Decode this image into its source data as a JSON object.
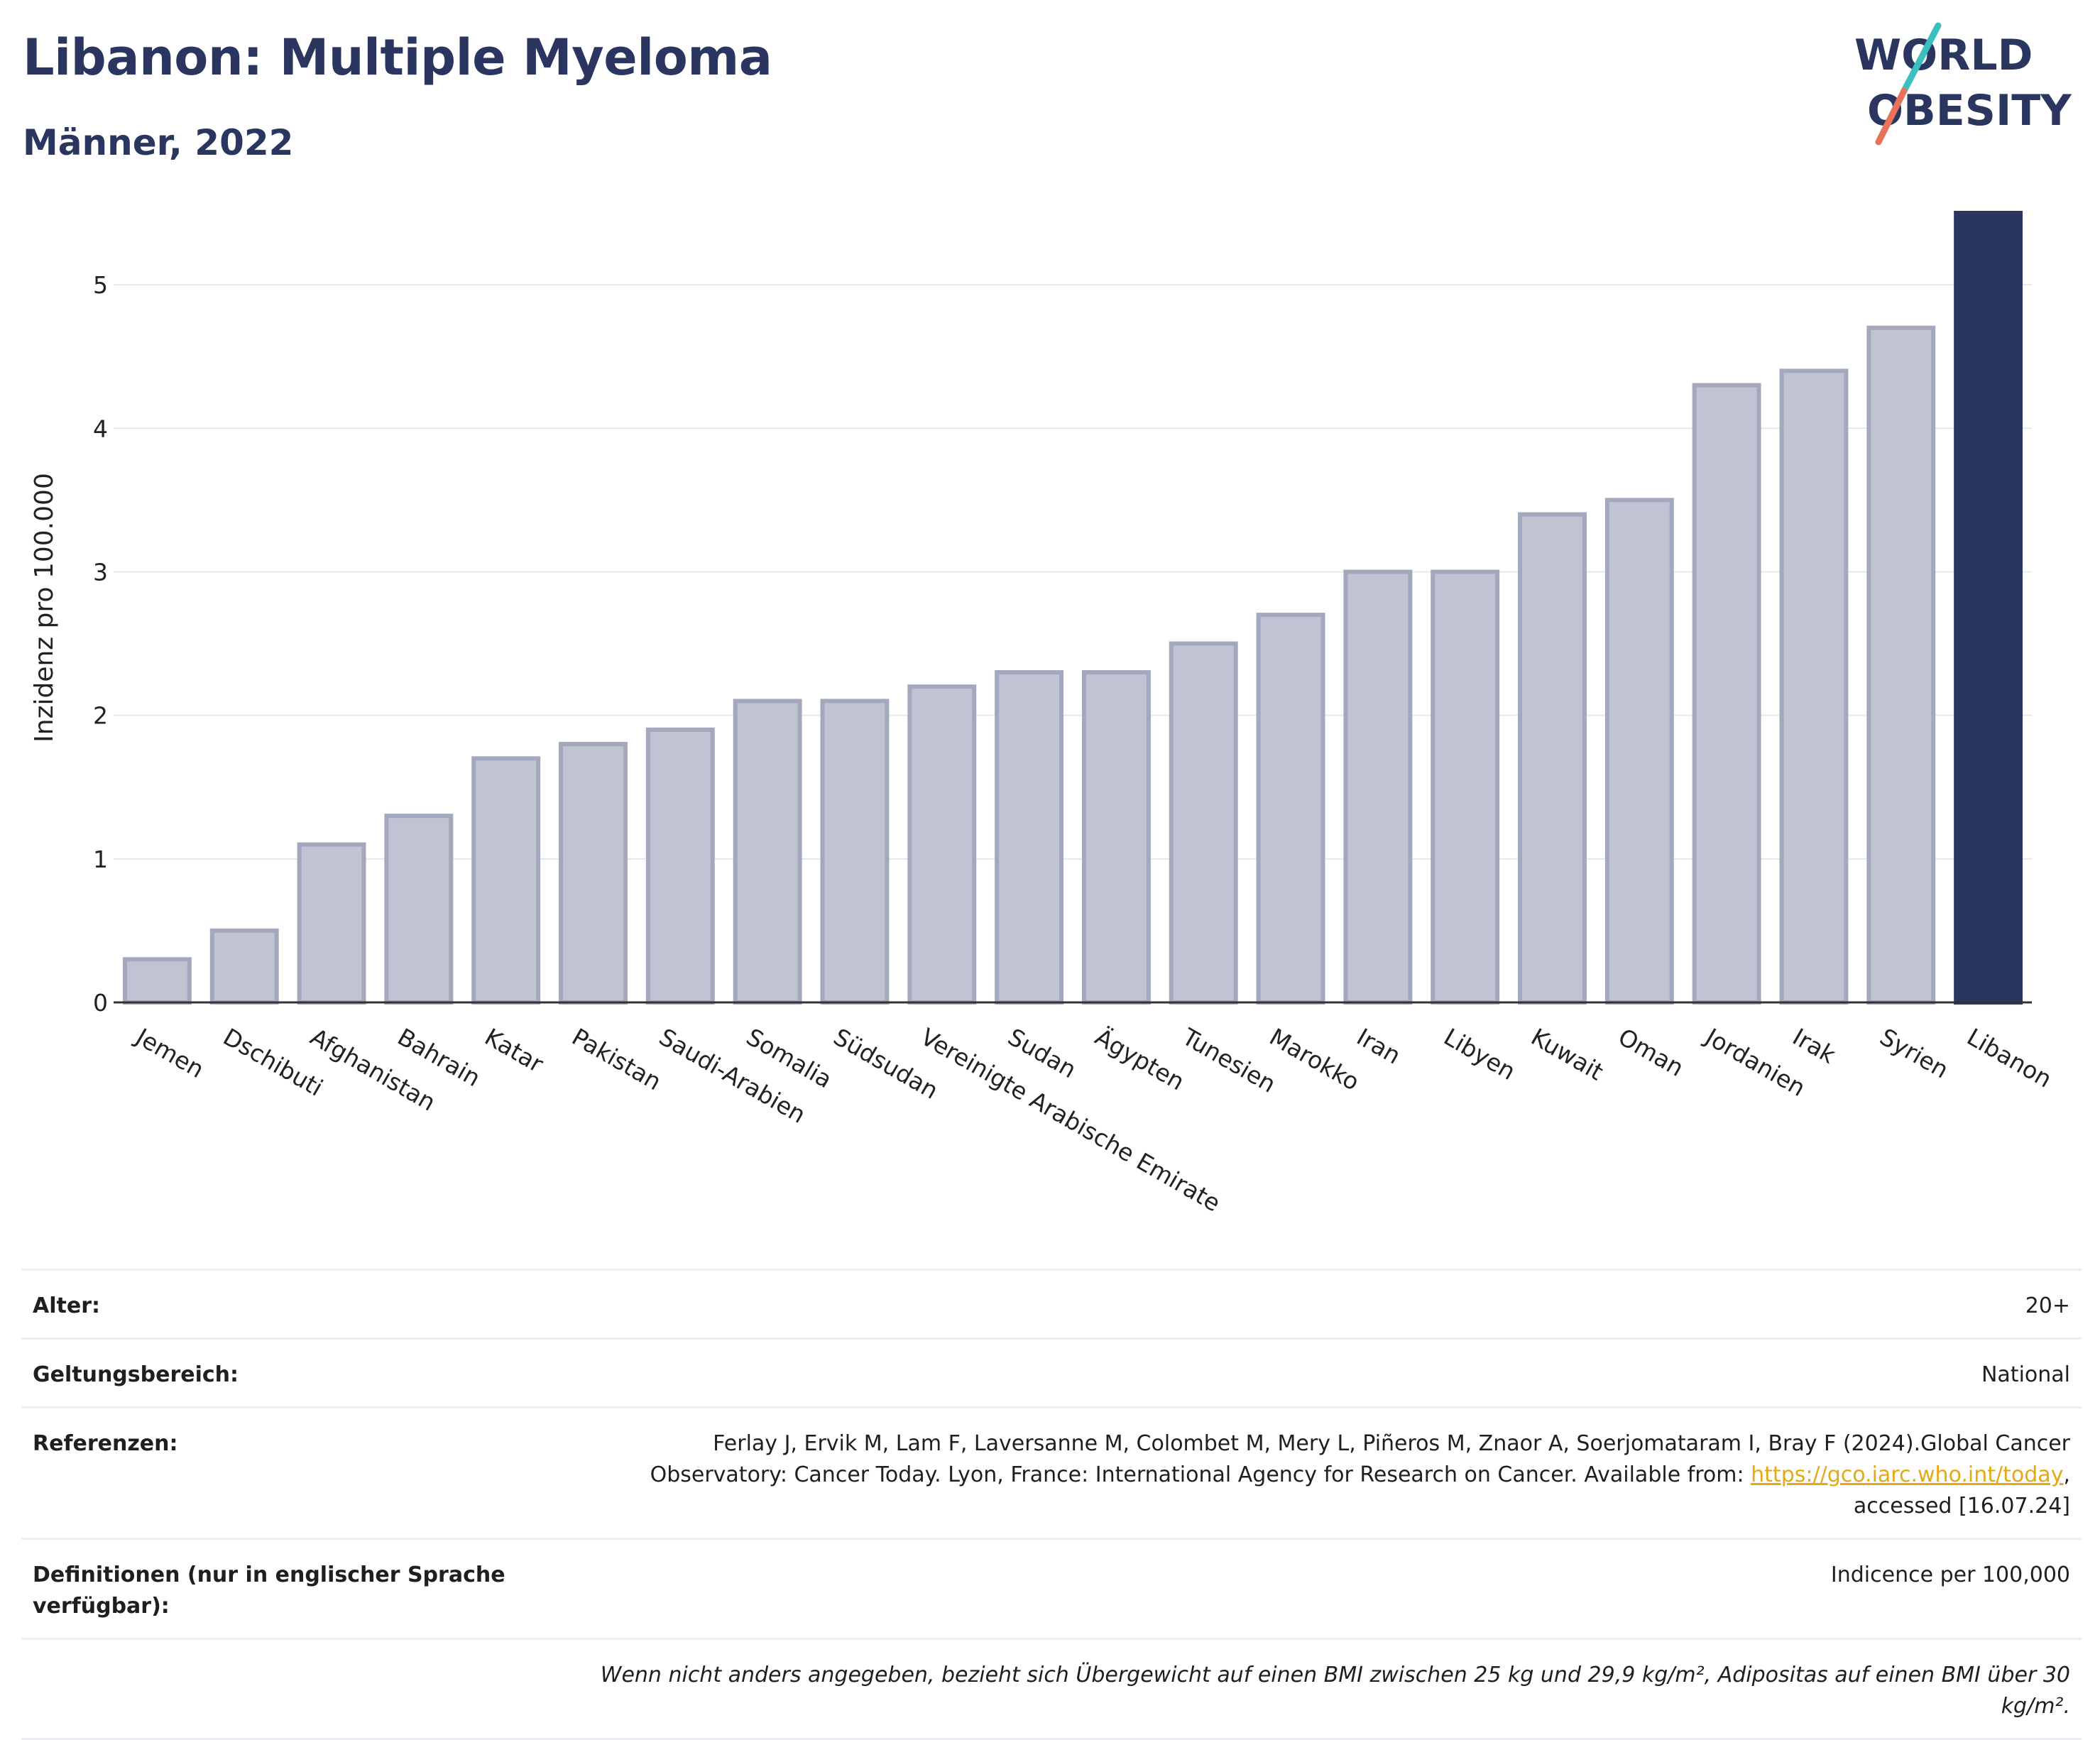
{
  "header": {
    "title": "Libanon: Multiple Myeloma",
    "subtitle": "Männer, 2022"
  },
  "logo": {
    "line1": "WORLD",
    "line2": "OBESITY",
    "colors": [
      "#2b3660",
      "#3bbfbf",
      "#e8735a"
    ]
  },
  "chart_data": {
    "type": "bar",
    "categories": [
      "Jemen",
      "Dschibuti",
      "Afghanistan",
      "Bahrain",
      "Katar",
      "Pakistan",
      "Saudi-Arabien",
      "Somalia",
      "Südsudan",
      "Vereinigte Arabische Emirate",
      "Sudan",
      "Ägypten",
      "Tunesien",
      "Marokko",
      "Iran",
      "Libyen",
      "Kuwait",
      "Oman",
      "Jordanien",
      "Irak",
      "Syrien",
      "Libanon"
    ],
    "values": [
      0.3,
      0.5,
      1.1,
      1.3,
      1.7,
      1.8,
      1.9,
      2.1,
      2.1,
      2.2,
      2.3,
      2.3,
      2.5,
      2.7,
      3.0,
      3.0,
      3.4,
      3.5,
      4.3,
      4.4,
      4.7,
      5.5
    ],
    "highlight": "Libanon",
    "ylabel": "Inzidenz pro 100.000",
    "yticks": [
      0,
      1,
      2,
      3,
      4,
      5
    ],
    "ylim": [
      0,
      5.5
    ],
    "grid": true,
    "colors": {
      "bar": "#c0c3d1",
      "bar_border": "#a3a8bd",
      "highlight": "#2b3660"
    }
  },
  "meta": {
    "age_label": "Alter:",
    "age_value": "20+",
    "scope_label": "Geltungsbereich:",
    "scope_value": "National",
    "ref_label": "Referenzen:",
    "ref_text": "Ferlay J, Ervik M, Lam F, Laversanne M, Colombet M, Mery L, Piñeros M, Znaor A, Soerjomataram I, Bray F (2024).Global Cancer Observatory: Cancer Today. Lyon, France: International Agency for Research on Cancer. Available from: ",
    "ref_link": "https://gco.iarc.who.int/today",
    "ref_suffix": ", accessed [16.07.24]",
    "def_label": "Definitionen (nur in englischer Sprache verfügbar):",
    "def_value": "Indicence per 100,000",
    "note": "Wenn nicht anders angegeben, bezieht sich Übergewicht auf einen BMI zwischen 25 kg und 29,9 kg/m², Adipositas auf einen BMI über 30 kg/m²."
  }
}
